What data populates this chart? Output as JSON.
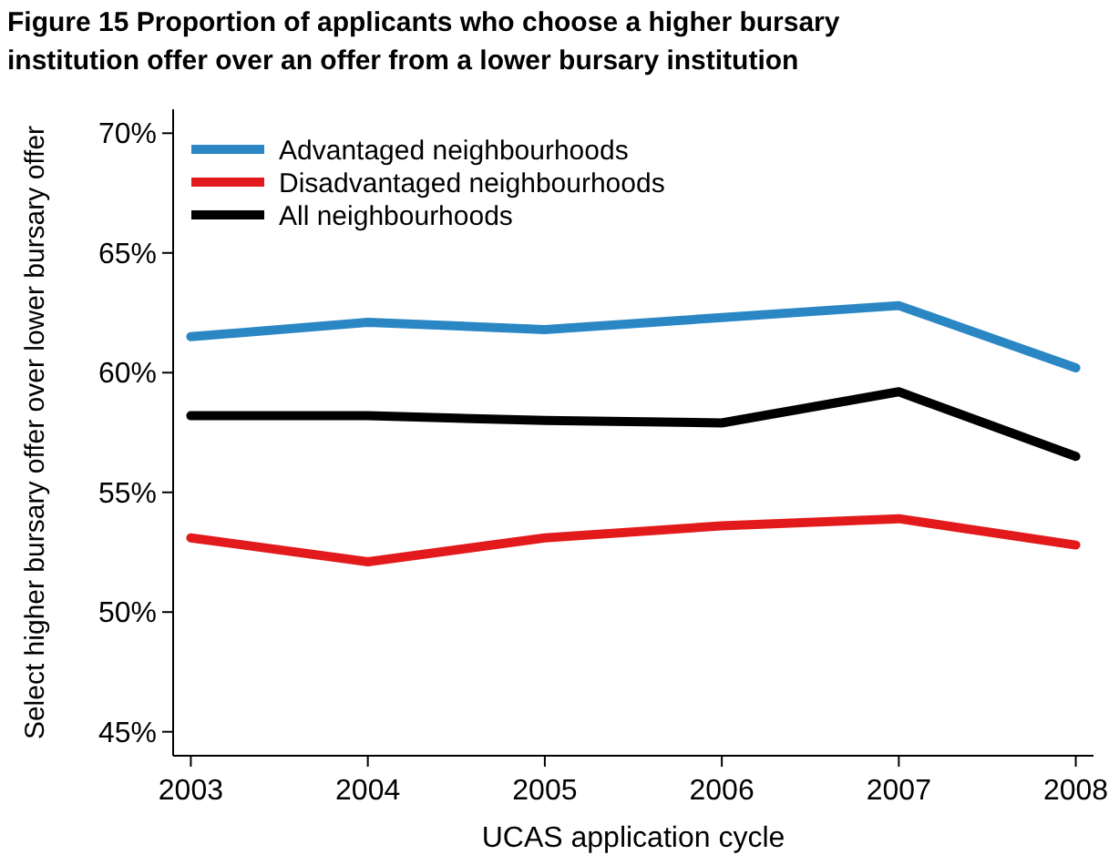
{
  "chart_data": {
    "type": "line",
    "title": "Figure 15 Proportion of applicants who choose a higher bursary institution offer over an offer from a lower bursary institution",
    "xlabel": "UCAS application cycle",
    "ylabel": "Select higher bursary offer over lower bursary offer",
    "x": [
      2003,
      2004,
      2005,
      2006,
      2007,
      2008
    ],
    "xlim": [
      2002.9,
      2008.1
    ],
    "xticks": [
      2003,
      2004,
      2005,
      2006,
      2007,
      2008
    ],
    "ylim": [
      44,
      71
    ],
    "yticks": [
      {
        "value": 45,
        "label": "45%"
      },
      {
        "value": 50,
        "label": "50%"
      },
      {
        "value": 55,
        "label": "55%"
      },
      {
        "value": 60,
        "label": "60%"
      },
      {
        "value": 65,
        "label": "65%"
      },
      {
        "value": 70,
        "label": "70%"
      }
    ],
    "grid": false,
    "legend": "top left",
    "marker": "none",
    "line_style": "solid",
    "series": [
      {
        "name": "Advantaged neighbourhoods",
        "color": "#2b87c4",
        "values": [
          61.5,
          62.1,
          61.8,
          62.3,
          62.8,
          60.2
        ]
      },
      {
        "name": "Disadvantaged neighbourhoods",
        "color": "#e31a1c",
        "values": [
          53.1,
          52.1,
          53.1,
          53.6,
          53.9,
          52.8
        ]
      },
      {
        "name": "All neighbourhoods",
        "color": "#000000",
        "values": [
          58.2,
          58.2,
          58.0,
          57.9,
          59.2,
          56.5
        ]
      }
    ]
  }
}
